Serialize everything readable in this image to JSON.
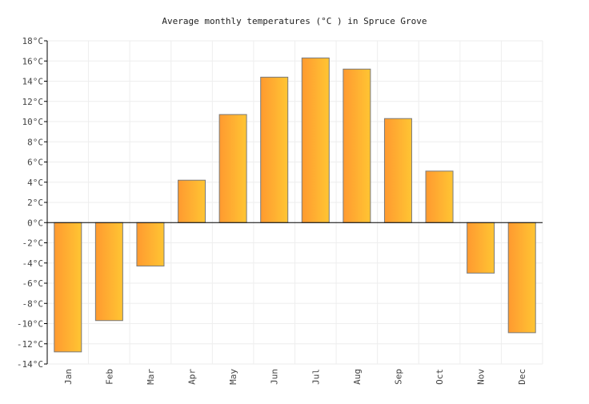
{
  "chart_data": {
    "type": "bar",
    "title": "Average monthly temperatures (°C ) in Spruce Grove",
    "categories": [
      "Jan",
      "Feb",
      "Mar",
      "Apr",
      "May",
      "Jun",
      "Jul",
      "Aug",
      "Sep",
      "Oct",
      "Nov",
      "Dec"
    ],
    "values": [
      -12.8,
      -9.7,
      -4.3,
      4.2,
      10.7,
      14.4,
      16.3,
      15.2,
      10.3,
      5.1,
      -5.0,
      -10.9
    ],
    "ylim": [
      -14,
      18
    ],
    "yticks": [
      "18°C",
      "16°C",
      "14°C",
      "12°C",
      "10°C",
      "8°C",
      "6°C",
      "4°C",
      "2°C",
      "0°C",
      "-2°C",
      "-4°C",
      "-6°C",
      "-8°C",
      "-10°C",
      "-12°C",
      "-14°C"
    ],
    "ytick_values": [
      18,
      16,
      14,
      12,
      10,
      8,
      6,
      4,
      2,
      0,
      -2,
      -4,
      -6,
      -8,
      -10,
      -12,
      -14
    ],
    "grid": true,
    "colors": {
      "bar_left": "#ff9a30",
      "bar_right": "#ffc533",
      "bar_stroke": "#7a7a7a",
      "grid": "#eeeeee"
    }
  }
}
